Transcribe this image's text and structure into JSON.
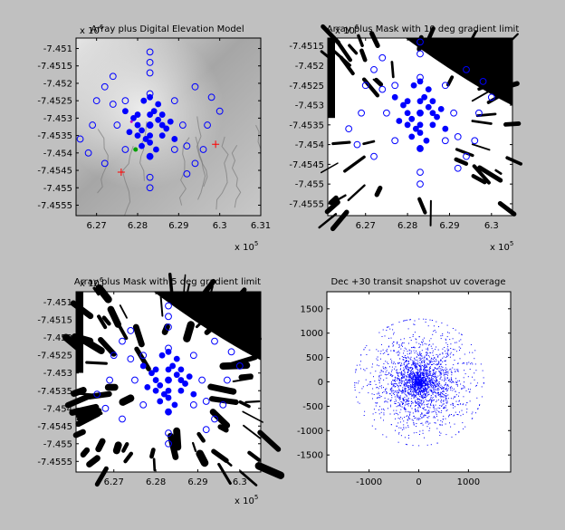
{
  "colors": {
    "figure_bg": "#c0c0c0",
    "marker": "#0000ff",
    "axes_edge": "#000000",
    "red_marker": "#ff0000",
    "green_marker": "#00a000"
  },
  "chart_data": [
    {
      "type": "scatter",
      "background": "grayscale digital elevation model",
      "title": "Array plus Digital Elevation Model",
      "x_exponent_label": "x 10",
      "x_exponent": "5",
      "y_exponent_label": "x 10",
      "y_exponent": "6",
      "xlim": [
        626500,
        631000
      ],
      "ylim": [
        -7455800,
        -7450700
      ],
      "x_ticks": [
        627000,
        628000,
        629000,
        630000,
        631000
      ],
      "x_tick_labels": [
        "6.27",
        "6.28",
        "6.29",
        "6.3",
        "6.31"
      ],
      "y_ticks": [
        -7455500,
        -7455000,
        -7454500,
        -7454000,
        -7453500,
        -7453000,
        -7452500,
        -7452000,
        -7451500,
        -7451000
      ],
      "y_tick_labels": [
        "-7.4555",
        "-7.455",
        "-7.4545",
        "-7.454",
        "-7.4535",
        "-7.453",
        "-7.4525",
        "-7.452",
        "-7.4515",
        "-7.451"
      ],
      "series": [
        {
          "marker": "filled circle",
          "center": [
            628300,
            -7453200
          ],
          "x": [
            628300,
            628000,
            628600,
            628300,
            628300,
            627800,
            628800,
            628000,
            628600,
            628000,
            628600,
            628300,
            627900,
            628700,
            628200,
            628400,
            628100,
            628500,
            627700,
            628900,
            628300,
            628300,
            628150,
            628450,
            628100,
            628500
          ],
          "y": [
            -7453200,
            -7453200,
            -7453200,
            -7453500,
            -7452900,
            -7453400,
            -7453100,
            -7452900,
            -7453500,
            -7453500,
            -7452900,
            -7453700,
            -7453000,
            -7453300,
            -7453600,
            -7452800,
            -7453350,
            -7453050,
            -7452800,
            -7453600,
            -7454100,
            -7452400,
            -7452500,
            -7453900,
            -7453800,
            -7452600
          ]
        },
        {
          "marker": "open circle",
          "center": [
            628300,
            -7453200
          ],
          "x": [
            628300,
            627500,
            629100,
            628300,
            628300,
            627400,
            629200,
            627700,
            628900,
            627700,
            628900,
            626900,
            629700,
            628300,
            628300,
            627000,
            629600,
            627200,
            629400,
            627200,
            629400,
            626600,
            630000,
            628300,
            628300,
            626800,
            629800,
            627400,
            629200,
            628300
          ],
          "y": [
            -7453200,
            -7453200,
            -7453200,
            -7452300,
            -7454100,
            -7452600,
            -7453800,
            -7452500,
            -7453900,
            -7453900,
            -7452500,
            -7453200,
            -7453200,
            -7451700,
            -7454700,
            -7452500,
            -7453900,
            -7454300,
            -7452100,
            -7452100,
            -7454300,
            -7453600,
            -7452800,
            -7451400,
            -7455000,
            -7454000,
            -7452400,
            -7451800,
            -7454600,
            -7451100
          ]
        }
      ],
      "markers_extra": [
        {
          "marker": "red plus",
          "x": 627600,
          "y": -7454550
        },
        {
          "marker": "red plus",
          "x": 629900,
          "y": -7453750
        },
        {
          "marker": "green star",
          "x": 627950,
          "y": -7453900
        },
        {
          "marker": "magenta dot",
          "x": 627850,
          "y": -7453100
        }
      ]
    },
    {
      "type": "scatter",
      "background": "black and white gradient mask",
      "title": "Array plus Mask with 10 deg gradient limit",
      "x_exponent_label": "x 10",
      "x_exponent": "5",
      "y_exponent_label": "x 10",
      "y_exponent": "6",
      "xlim": [
        626100,
        630500
      ],
      "ylim": [
        -7455800,
        -7451300
      ],
      "x_ticks": [
        627000,
        628000,
        629000,
        630000
      ],
      "x_tick_labels": [
        "6.27",
        "6.28",
        "6.29",
        "6.3"
      ],
      "y_ticks": [
        -7455500,
        -7455000,
        -7454500,
        -7454000,
        -7453500,
        -7453000,
        -7452500,
        -7452000,
        -7451500
      ],
      "y_tick_labels": [
        "-7.4555",
        "-7.455",
        "-7.4545",
        "-7.454",
        "-7.4535",
        "-7.453",
        "-7.4525",
        "-7.452",
        "-7.4515"
      ],
      "series": [
        {
          "marker": "filled circle",
          "center": [
            628300,
            -7453200
          ],
          "x": [
            628300,
            628000,
            628600,
            628300,
            628300,
            627800,
            628800,
            628000,
            628600,
            628000,
            628600,
            628300,
            627900,
            628700,
            628200,
            628400,
            628100,
            628500,
            627700,
            628900,
            628300,
            628300,
            628150,
            628450,
            628100,
            628500
          ],
          "y": [
            -7453200,
            -7453200,
            -7453200,
            -7453500,
            -7452900,
            -7453400,
            -7453100,
            -7452900,
            -7453500,
            -7453500,
            -7452900,
            -7453700,
            -7453000,
            -7453300,
            -7453600,
            -7452800,
            -7453350,
            -7453050,
            -7452800,
            -7453600,
            -7454100,
            -7452400,
            -7452500,
            -7453900,
            -7453800,
            -7452600
          ]
        },
        {
          "marker": "open circle",
          "center": [
            628300,
            -7453200
          ],
          "x": [
            628300,
            627500,
            629100,
            628300,
            628300,
            627400,
            629200,
            627700,
            628900,
            627700,
            628900,
            626900,
            629700,
            628300,
            628300,
            627000,
            629600,
            627200,
            629400,
            627200,
            629400,
            626600,
            630000,
            628300,
            628300,
            626800,
            629800,
            627400,
            629200,
            628300
          ],
          "y": [
            -7453200,
            -7453200,
            -7453200,
            -7452300,
            -7454100,
            -7452600,
            -7453800,
            -7452500,
            -7453900,
            -7453900,
            -7452500,
            -7453200,
            -7453200,
            -7451700,
            -7454700,
            -7452500,
            -7453900,
            -7454300,
            -7452100,
            -7452100,
            -7454300,
            -7453600,
            -7452800,
            -7451400,
            -7455000,
            -7454000,
            -7452400,
            -7451800,
            -7454600,
            -7451100
          ]
        }
      ]
    },
    {
      "type": "scatter",
      "background": "black and white gradient mask",
      "title": "Array plus Mask with 5 deg gradient limit",
      "x_exponent_label": "x 10",
      "x_exponent": "5",
      "y_exponent_label": "x 10",
      "y_exponent": "6",
      "xlim": [
        626100,
        630500
      ],
      "ylim": [
        -7455800,
        -7450700
      ],
      "x_ticks": [
        627000,
        628000,
        629000,
        630000
      ],
      "x_tick_labels": [
        "6.27",
        "6.28",
        "6.29",
        "6.3"
      ],
      "y_ticks": [
        -7455500,
        -7455000,
        -7454500,
        -7454000,
        -7453500,
        -7453000,
        -7452500,
        -7452000,
        -7451500,
        -7451000
      ],
      "y_tick_labels": [
        "-7.4555",
        "-7.455",
        "-7.4545",
        "-7.454",
        "-7.4535",
        "-7.453",
        "-7.4525",
        "-7.452",
        "-7.4515",
        "-7.451"
      ],
      "series": [
        {
          "marker": "filled circle",
          "center": [
            628300,
            -7453200
          ],
          "x": [
            628300,
            628000,
            628600,
            628300,
            628300,
            627800,
            628800,
            628000,
            628600,
            628000,
            628600,
            628300,
            627900,
            628700,
            628200,
            628400,
            628100,
            628500,
            627700,
            628900,
            628300,
            628300,
            628150,
            628450,
            628100,
            628500
          ],
          "y": [
            -7453200,
            -7453200,
            -7453200,
            -7453500,
            -7452900,
            -7453400,
            -7453100,
            -7452900,
            -7453500,
            -7453500,
            -7452900,
            -7453700,
            -7453000,
            -7453300,
            -7453600,
            -7452800,
            -7453350,
            -7453050,
            -7452800,
            -7453600,
            -7454100,
            -7452400,
            -7452500,
            -7453900,
            -7453800,
            -7452600
          ]
        },
        {
          "marker": "open circle",
          "center": [
            628300,
            -7453200
          ],
          "x": [
            628300,
            627500,
            629100,
            628300,
            628300,
            627400,
            629200,
            627700,
            628900,
            627700,
            628900,
            626900,
            629700,
            628300,
            628300,
            627000,
            629600,
            627200,
            629400,
            627200,
            629400,
            626600,
            630000,
            628300,
            628300,
            626800,
            629800,
            627400,
            629200,
            628300
          ],
          "y": [
            -7453200,
            -7453200,
            -7453200,
            -7452300,
            -7454100,
            -7452600,
            -7453800,
            -7452500,
            -7453900,
            -7453900,
            -7452500,
            -7453200,
            -7453200,
            -7451700,
            -7454700,
            -7452500,
            -7453900,
            -7454300,
            -7452100,
            -7452100,
            -7454300,
            -7453600,
            -7452800,
            -7451400,
            -7455000,
            -7454000,
            -7452400,
            -7451800,
            -7454600,
            -7451100
          ]
        }
      ]
    },
    {
      "type": "scatter",
      "title": "Dec +30 transit snapshot uv coverage",
      "xlim": [
        -1850,
        1850
      ],
      "ylim": [
        -1850,
        1850
      ],
      "x_ticks": [
        -1000,
        0,
        1000
      ],
      "x_tick_labels": [
        "-1000",
        "0",
        "1000"
      ],
      "y_ticks": [
        1500,
        1000,
        500,
        0,
        -500,
        -1000,
        -1500
      ],
      "y_tick_labels": [
        "1500",
        "1000",
        "500",
        "0",
        "-500",
        "-1000",
        "-1500"
      ],
      "series": [
        {
          "marker": "point",
          "distribution": "dense uv sampling centred on origin, extending to about 1300 in radius",
          "count": 2500,
          "extent": 1300
        }
      ]
    }
  ]
}
